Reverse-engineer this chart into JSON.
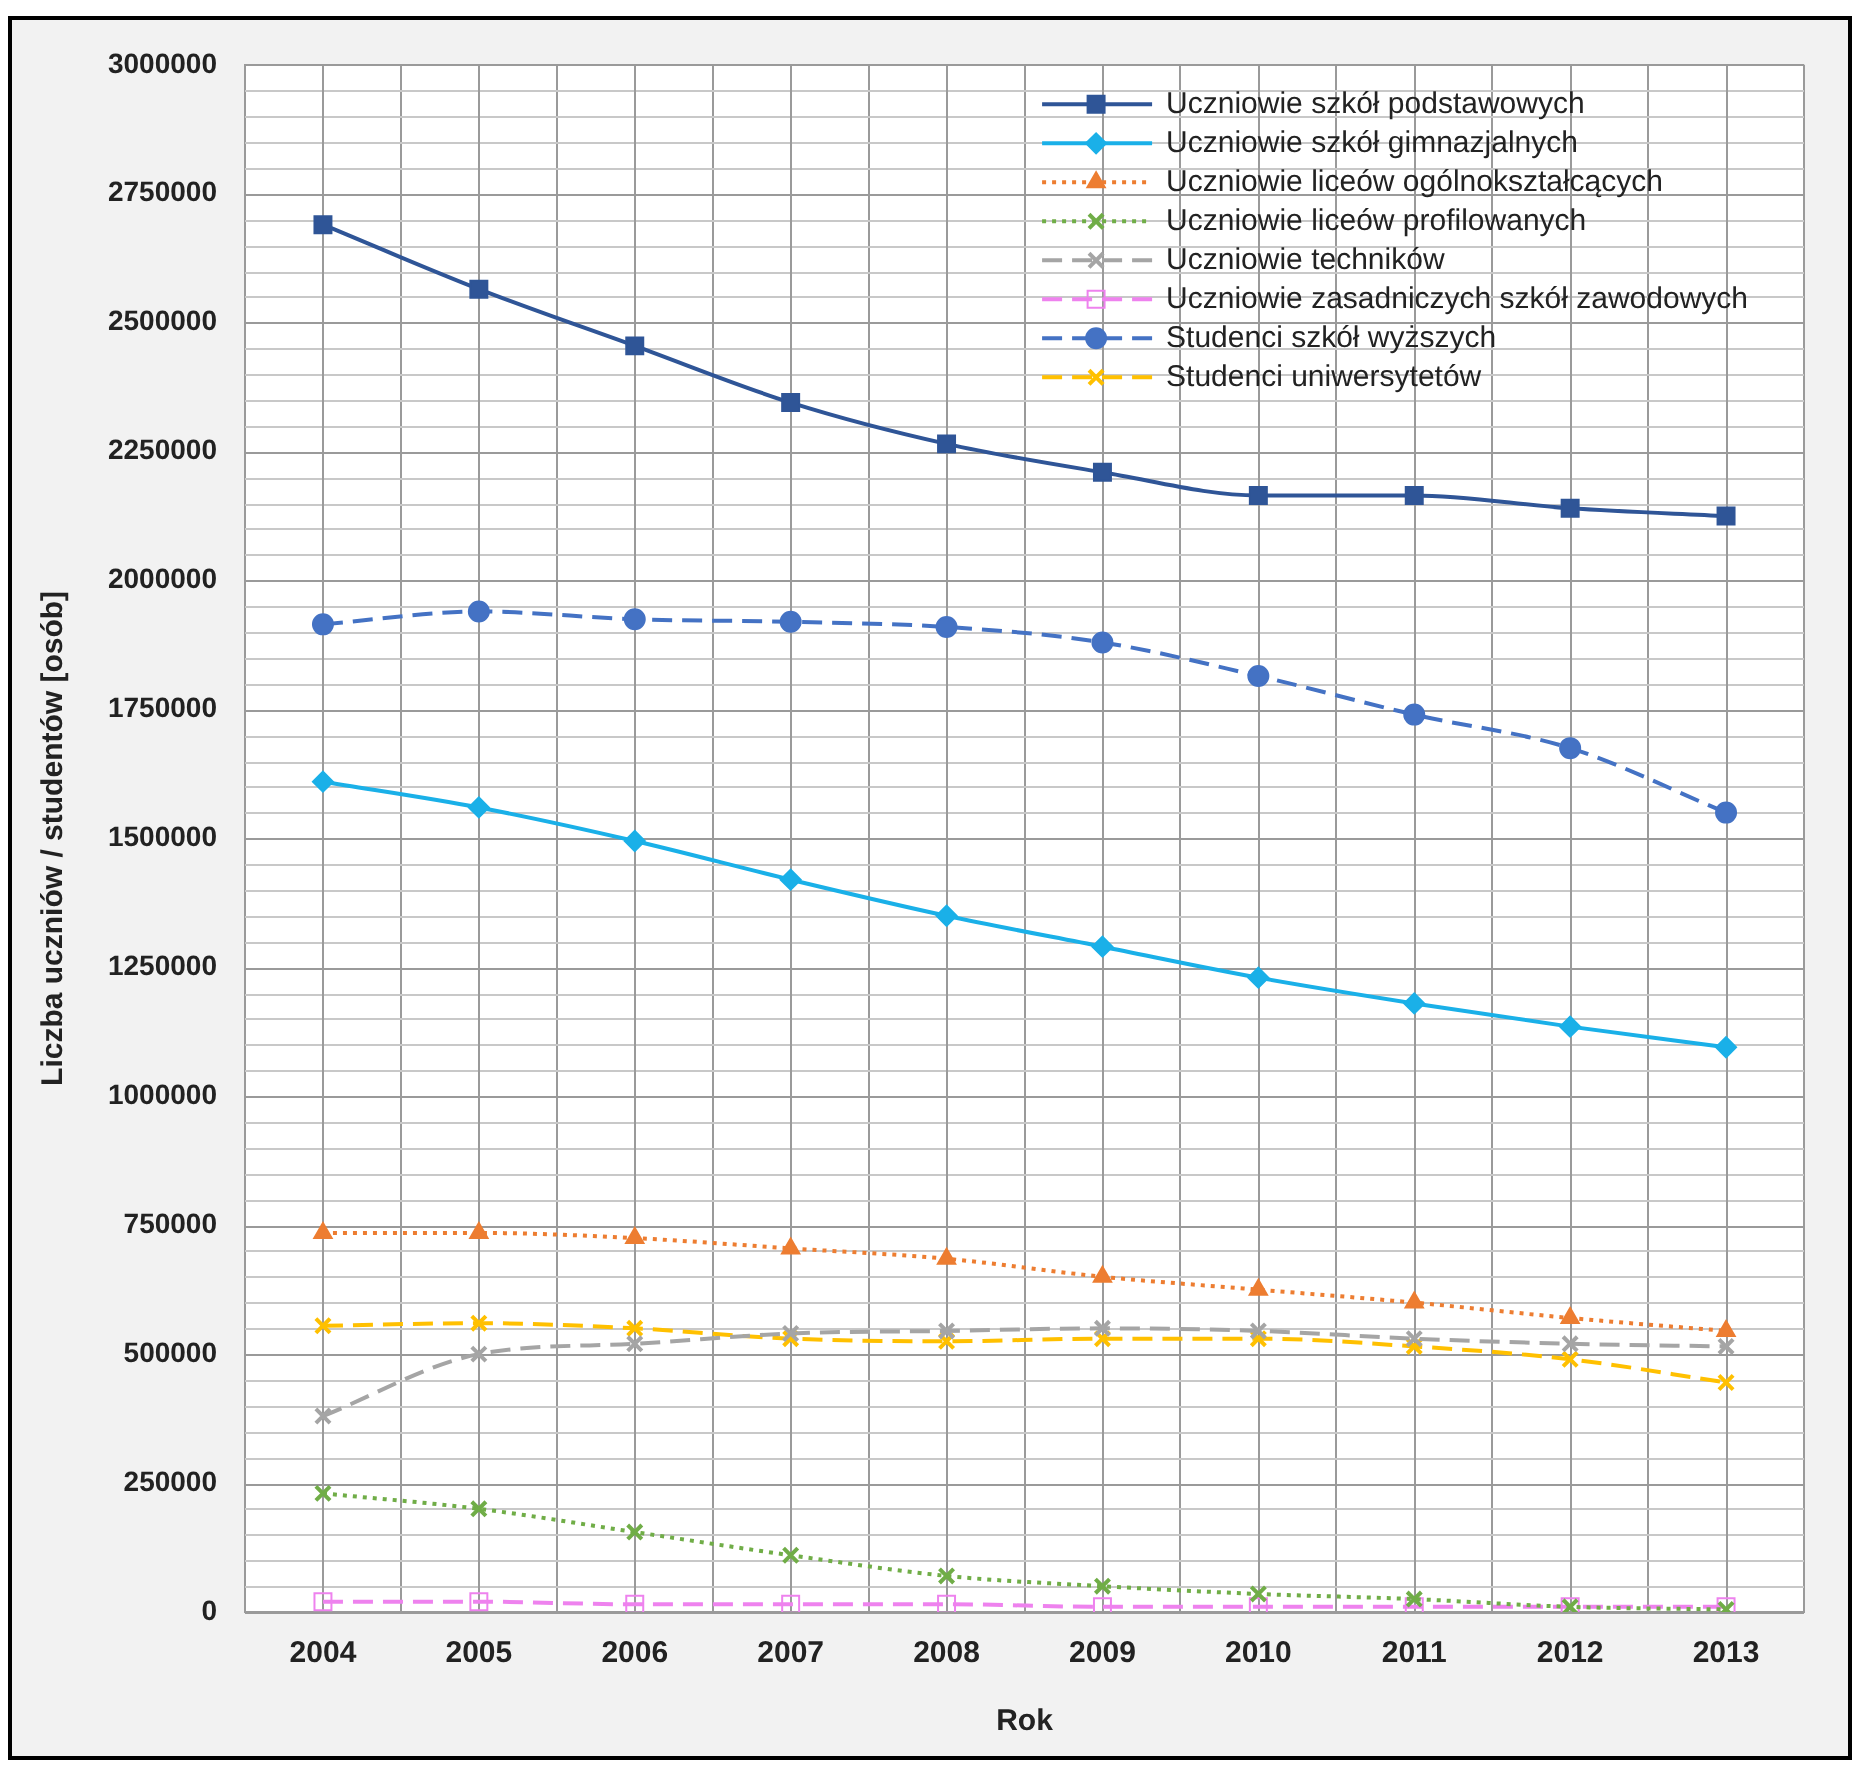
{
  "chart_data": {
    "type": "line",
    "xlabel": "Rok",
    "ylabel": "Liczba uczniów / studentów [osób]",
    "categories": [
      "2004",
      "2005",
      "2006",
      "2007",
      "2008",
      "2009",
      "2010",
      "2011",
      "2012",
      "2013"
    ],
    "ylim": [
      0,
      3000000
    ],
    "yticks": [
      0,
      {
        "value": 50000,
        "label": null
      },
      {
        "value": 100000,
        "label": null
      },
      {
        "value": 150000,
        "label": null
      },
      {
        "value": 200000,
        "label": null
      },
      250000,
      {
        "value": 300000,
        "label": null
      },
      {
        "value": 350000,
        "label": null
      },
      {
        "value": 400000,
        "label": null
      },
      {
        "value": 450000,
        "label": null
      },
      500000,
      {
        "value": 550000,
        "label": null
      },
      {
        "value": 600000,
        "label": null
      },
      {
        "value": 650000,
        "label": null
      },
      {
        "value": 700000,
        "label": null
      },
      750000,
      {
        "value": 800000,
        "label": null
      },
      {
        "value": 850000,
        "label": null
      },
      {
        "value": 900000,
        "label": null
      },
      {
        "value": 950000,
        "label": null
      },
      1000000,
      {
        "value": 1050000,
        "label": null
      },
      {
        "value": 1100000,
        "label": null
      },
      {
        "value": 1150000,
        "label": null
      },
      {
        "value": 1200000,
        "label": null
      },
      1250000,
      {
        "value": 1300000,
        "label": null
      },
      {
        "value": 1350000,
        "label": null
      },
      {
        "value": 1400000,
        "label": null
      },
      {
        "value": 1450000,
        "label": null
      },
      1500000,
      {
        "value": 1550000,
        "label": null
      },
      {
        "value": 1600000,
        "label": null
      },
      {
        "value": 1650000,
        "label": null
      },
      {
        "value": 1700000,
        "label": null
      },
      1750000,
      {
        "value": 1800000,
        "label": null
      },
      {
        "value": 1850000,
        "label": null
      },
      {
        "value": 1900000,
        "label": null
      },
      {
        "value": 1950000,
        "label": null
      },
      2000000,
      {
        "value": 2050000,
        "label": null
      },
      {
        "value": 2100000,
        "label": null
      },
      {
        "value": 2150000,
        "label": null
      },
      {
        "value": 2200000,
        "label": null
      },
      2250000,
      {
        "value": 2300000,
        "label": null
      },
      {
        "value": 2350000,
        "label": null
      },
      {
        "value": 2400000,
        "label": null
      },
      {
        "value": 2450000,
        "label": null
      },
      2500000,
      {
        "value": 2550000,
        "label": null
      },
      {
        "value": 2600000,
        "label": null
      },
      {
        "value": 2650000,
        "label": null
      },
      {
        "value": 2700000,
        "label": null
      },
      2750000,
      {
        "value": 2800000,
        "label": null
      },
      {
        "value": 2850000,
        "label": null
      },
      {
        "value": 2900000,
        "label": null
      },
      {
        "value": 2950000,
        "label": null
      },
      3000000
    ],
    "grid": true,
    "legend": "top right",
    "series": [
      {
        "name": "Uczniowie szkół podstawowych",
        "color": "#2f5597",
        "marker": "square",
        "line_style": "solid",
        "values": [
          2690000,
          2565000,
          2455000,
          2345000,
          2265000,
          2210000,
          2165000,
          2165000,
          2140000,
          2125000
        ]
      },
      {
        "name": "Uczniowie szkół gimnazjalnych",
        "color": "#1ab0e8",
        "marker": "diamond",
        "line_style": "solid",
        "values": [
          1610000,
          1560000,
          1495000,
          1420000,
          1350000,
          1290000,
          1230000,
          1180000,
          1135000,
          1095000
        ]
      },
      {
        "name": "Uczniowie liceów ogólnokształcących",
        "color": "#ed7d31",
        "marker": "triangle",
        "line_style": "dotted",
        "values": [
          735000,
          735000,
          725000,
          705000,
          685000,
          650000,
          625000,
          600000,
          570000,
          545000
        ]
      },
      {
        "name": "Uczniowie liceów profilowanych",
        "color": "#70ad47",
        "marker": "cross",
        "line_style": "dotted",
        "values": [
          230000,
          200000,
          155000,
          110000,
          70000,
          50000,
          35000,
          25000,
          10000,
          5000
        ]
      },
      {
        "name": "Uczniowie techników",
        "color": "#a5a5a5",
        "marker": "cross",
        "line_style": "dashed",
        "values": [
          380000,
          500000,
          520000,
          540000,
          545000,
          550000,
          545000,
          530000,
          520000,
          515000
        ]
      },
      {
        "name": "Uczniowie zasadniczych szkół zawodowych",
        "color": "#ee82ee",
        "marker": "square",
        "line_style": "dashed",
        "values": [
          20000,
          20000,
          15000,
          15000,
          15000,
          10000,
          10000,
          10000,
          10000,
          10000
        ]
      },
      {
        "name": "Studenci szkół wyższych",
        "color": "#4472c4",
        "marker": "circle",
        "line_style": "dashed",
        "values": [
          1915000,
          1940000,
          1925000,
          1920000,
          1910000,
          1880000,
          1815000,
          1740000,
          1675000,
          1550000
        ]
      },
      {
        "name": "Studenci uniwersytetów",
        "color": "#ffc000",
        "marker": "cross",
        "line_style": "dashed",
        "values": [
          555000,
          560000,
          550000,
          530000,
          525000,
          530000,
          530000,
          515000,
          490000,
          445000
        ]
      }
    ]
  }
}
